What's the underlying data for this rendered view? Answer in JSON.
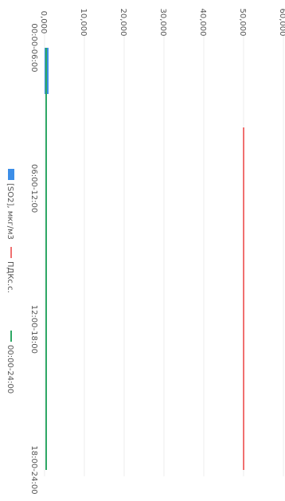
{
  "chart_data": {
    "type": "bar",
    "orientation": "rotated-90-clockwise",
    "categories": [
      "00:00-06:00",
      "06:00-12:00",
      "12:00-18:00",
      "18:00-24:00"
    ],
    "y_ticks": [
      "0,000",
      "10,000",
      "20,000",
      "30,000",
      "40,000",
      "50,000",
      "60,000"
    ],
    "ylim": [
      0,
      60
    ],
    "grid": true,
    "legend_position": "bottom",
    "series": [
      {
        "name": "[SO2], мкг/м3",
        "kind": "bar",
        "color": "#3c8ee8",
        "values": [
          1.0,
          0,
          0,
          0
        ]
      },
      {
        "name": "ПДКс.с.",
        "kind": "line",
        "color": "#f07070",
        "values": [
          50,
          50,
          50,
          50
        ]
      },
      {
        "name": "00:00-24:00",
        "kind": "line",
        "color": "#2ea865",
        "values": [
          0.4,
          0.4,
          0.4,
          0.4
        ]
      }
    ]
  }
}
